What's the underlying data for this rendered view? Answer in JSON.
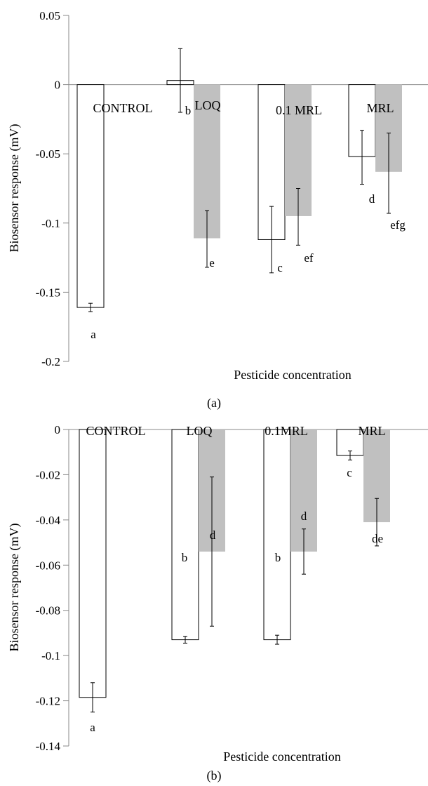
{
  "chart_data": [
    {
      "type": "bar",
      "panel_label": "(a)",
      "xlabel": "Pesticide concentration",
      "ylabel": "Biosensor response (mV)",
      "ylim": [
        -0.2,
        0.05
      ],
      "yticks": [
        0.05,
        0,
        -0.05,
        -0.1,
        -0.15,
        -0.2
      ],
      "ytick_labels": [
        "0.05",
        "0",
        "-0.05",
        "-0.1",
        "-0.15",
        "-0.2"
      ],
      "categories": [
        "CONTROL",
        "LOQ",
        "0.1 MRL",
        "MRL"
      ],
      "series": [
        {
          "color": "#ffffff",
          "values": [
            -0.161,
            0.003,
            -0.112,
            -0.052
          ],
          "err_low": [
            -0.164,
            -0.02,
            -0.136,
            -0.072
          ],
          "err_high": [
            -0.158,
            0.026,
            -0.088,
            -0.033
          ],
          "letters": [
            "a",
            "b",
            "c",
            "d"
          ]
        },
        {
          "color": "#c0c0c0",
          "values": [
            null,
            -0.111,
            -0.095,
            -0.063
          ],
          "err_low": [
            null,
            -0.132,
            -0.116,
            -0.093
          ],
          "err_high": [
            null,
            -0.091,
            -0.075,
            -0.035
          ],
          "letters": [
            null,
            "e",
            "ef",
            "efg"
          ]
        }
      ]
    },
    {
      "type": "bar",
      "panel_label": "(b)",
      "xlabel": "Pesticide concentration",
      "ylabel": "Biosensor response (mV)",
      "ylim": [
        -0.14,
        0
      ],
      "yticks": [
        0,
        -0.02,
        -0.04,
        -0.06,
        -0.08,
        -0.1,
        -0.12,
        -0.14
      ],
      "ytick_labels": [
        "0",
        "-0.02",
        "-0.04",
        "-0.06",
        "-0.08",
        "-0.1",
        "-0.12",
        "-0.14"
      ],
      "categories": [
        "CONTROL",
        "LOQ",
        "0.1MRL",
        "MRL"
      ],
      "series": [
        {
          "color": "#ffffff",
          "values": [
            -0.1185,
            -0.093,
            -0.093,
            -0.0115
          ],
          "err_low": [
            -0.125,
            -0.0945,
            -0.095,
            -0.0135
          ],
          "err_high": [
            -0.112,
            -0.0915,
            -0.091,
            -0.0095
          ],
          "letters": [
            "a",
            "b",
            "b",
            "c"
          ]
        },
        {
          "color": "#c0c0c0",
          "values": [
            null,
            -0.054,
            -0.054,
            -0.041
          ],
          "err_low": [
            null,
            -0.087,
            -0.064,
            -0.0515
          ],
          "err_high": [
            null,
            -0.021,
            -0.044,
            -0.0305
          ],
          "letters": [
            null,
            "d",
            "d",
            "de"
          ]
        }
      ]
    }
  ]
}
